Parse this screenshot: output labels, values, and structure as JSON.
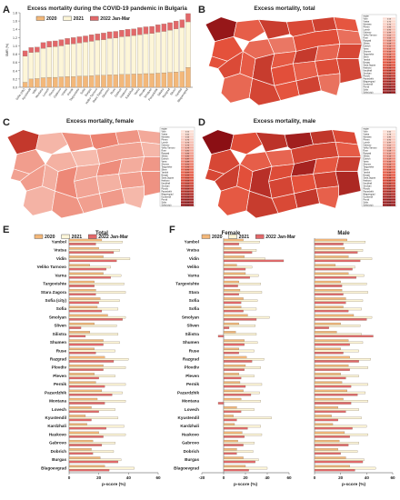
{
  "panels": {
    "A": {
      "letter": "A",
      "title": "Excess mortality during the COVID-19 pandemic in Bulgaria"
    },
    "B": {
      "letter": "B",
      "title": "Excess mortality, total"
    },
    "C": {
      "letter": "C",
      "title": "Excess mortality, female"
    },
    "D": {
      "letter": "D",
      "title": "Excess mortality, male"
    },
    "E": {
      "letter": "E",
      "title": "Total"
    },
    "F": {
      "letter": "F",
      "title_female": "Female",
      "title_male": "Male"
    }
  },
  "colors": {
    "s2020": "#f3b87a",
    "s2021": "#fdf6d8",
    "s2022": "#e2686a",
    "map_dark": "#8b0f14",
    "map_mid": "#e4513b",
    "map_light": "#f7c1a4",
    "border": "#6b6b6b"
  },
  "chart_data": [
    {
      "panel": "A",
      "type": "bar",
      "stacked": true,
      "title": "Excess mortality during the COVID-19 pandemic in Bulgaria",
      "ylabel": "SMR (%)",
      "ylim": [
        0,
        1.8
      ],
      "yticks": [
        "0.0",
        "0.2",
        "0.4",
        "0.6",
        "0.8",
        "1.0",
        "1.2",
        "1.4",
        "1.6",
        "1.8"
      ],
      "legend": [
        "2020",
        "2021",
        "2022 Jan-Mar"
      ],
      "categories": [
        "Sofia (city)",
        "Kyustendil",
        "Vidin",
        "Montana",
        "Lovech",
        "Pleven",
        "Gabrovo",
        "Vratsa",
        "Pernik",
        "Targovishte",
        "Sofia",
        "Burgas",
        "Veliko Tarnovo",
        "Stara Zagora",
        "Shumen",
        "Ruse",
        "Dobrich",
        "Haskovo",
        "Kardzhali",
        "Varna",
        "Plovdiv",
        "Smolyan",
        "Pazardzhik",
        "Silistra",
        "Razgrad",
        "Sliven",
        "Yambol",
        "Blagoevgrad"
      ],
      "series": [
        {
          "name": "2020",
          "values": [
            0.12,
            0.2,
            0.21,
            0.23,
            0.24,
            0.24,
            0.25,
            0.26,
            0.26,
            0.27,
            0.27,
            0.28,
            0.29,
            0.29,
            0.3,
            0.3,
            0.31,
            0.31,
            0.32,
            0.32,
            0.33,
            0.33,
            0.34,
            0.35,
            0.36,
            0.37,
            0.38,
            0.48
          ]
        },
        {
          "name": "2021",
          "values": [
            0.63,
            0.64,
            0.64,
            0.71,
            0.73,
            0.74,
            0.75,
            0.78,
            0.79,
            0.8,
            0.82,
            0.83,
            0.85,
            0.86,
            0.88,
            0.89,
            0.91,
            0.92,
            0.93,
            0.95,
            0.96,
            0.97,
            0.99,
            1.0,
            1.02,
            1.04,
            1.06,
            1.1
          ]
        },
        {
          "name": "2022 Jan-Mar",
          "values": [
            0.13,
            0.12,
            0.12,
            0.14,
            0.14,
            0.14,
            0.15,
            0.14,
            0.15,
            0.15,
            0.15,
            0.16,
            0.15,
            0.16,
            0.16,
            0.16,
            0.16,
            0.17,
            0.16,
            0.17,
            0.17,
            0.17,
            0.18,
            0.18,
            0.18,
            0.19,
            0.19,
            0.2
          ]
        }
      ]
    },
    {
      "panel": "E",
      "type": "bar",
      "orientation": "horizontal",
      "title": "Total",
      "xlabel": "p-score  (%)",
      "xlim": [
        0,
        60
      ],
      "xticks": [
        "0",
        "20",
        "40",
        "60"
      ],
      "legend": [
        "2020",
        "2021",
        "2022 Jan-Mar"
      ],
      "categories": [
        "Yambol",
        "Vratsa",
        "Vidin",
        "Veliko Tarnovo",
        "Varna",
        "Targovishte",
        "Stara Zagora",
        "Sofia (city)",
        "Sofia",
        "Smolyan",
        "Sliven",
        "Silistra",
        "Shumen",
        "Ruse",
        "Razgrad",
        "Plovdiv",
        "Pleven",
        "Pernik",
        "Pazardzhik",
        "Montana",
        "Lovech",
        "Kyustendil",
        "Kardzhali",
        "Haskovo",
        "Gabrovo",
        "Dobrich",
        "Burgas",
        "Blagoevgrad"
      ],
      "series": [
        {
          "name": "2020",
          "values": [
            22,
            20,
            23,
            14,
            23,
            17,
            18,
            21,
            19,
            26,
            17,
            14,
            23,
            17,
            24,
            23,
            17,
            18,
            22,
            19,
            15,
            11,
            12,
            20,
            16,
            15,
            21,
            24
          ]
        },
        {
          "name": "2021",
          "values": [
            36,
            34,
            41,
            28,
            35,
            37,
            38,
            34,
            33,
            38,
            32,
            33,
            34,
            31,
            40,
            38,
            31,
            38,
            36,
            38,
            31,
            33,
            37,
            38,
            31,
            30,
            35,
            44
          ]
        },
        {
          "name": "2022 Jan-Mar",
          "values": [
            18,
            30,
            32,
            25,
            28,
            17,
            18,
            20,
            22,
            36,
            8,
            11,
            23,
            18,
            30,
            23,
            20,
            24,
            29,
            24,
            20,
            15,
            25,
            23,
            22,
            16,
            33,
            27
          ]
        }
      ]
    },
    {
      "panel": "F-female",
      "type": "bar",
      "orientation": "horizontal",
      "title": "Female",
      "xlabel": "p-score  (%)",
      "xlim": [
        -20,
        60
      ],
      "xticks": [
        "-20",
        "0",
        "20",
        "40",
        "60"
      ],
      "categories": [
        "Yambol",
        "Vratsa",
        "Vidin",
        "Veliko",
        "Varna",
        "Targovishte",
        "Stara",
        "Sofia",
        "Sofia",
        "Smolyan",
        "Sliven",
        "Silistra",
        "Shumen",
        "Ruse",
        "Razgrad",
        "Plovdiv",
        "Pleven",
        "Pernik",
        "Pazardzhik",
        "Montana",
        "Lovech",
        "Kyustendil",
        "Kardzhali",
        "Haskovo",
        "Gabrovo",
        "Dobrich",
        "Burgas",
        "Blagoevgrad"
      ],
      "series": [
        {
          "name": "2020",
          "values": [
            18,
            16,
            19,
            12,
            20,
            14,
            15,
            18,
            16,
            22,
            14,
            11,
            19,
            14,
            21,
            20,
            14,
            15,
            18,
            16,
            12,
            9,
            10,
            17,
            13,
            12,
            18,
            20
          ]
        },
        {
          "name": "2021",
          "values": [
            33,
            30,
            38,
            26,
            32,
            34,
            35,
            31,
            30,
            42,
            29,
            30,
            31,
            28,
            37,
            34,
            28,
            35,
            33,
            34,
            28,
            44,
            34,
            35,
            28,
            27,
            32,
            40
          ]
        },
        {
          "name": "2022 Jan-Mar",
          "values": [
            14,
            26,
            55,
            20,
            24,
            13,
            14,
            16,
            18,
            30,
            5,
            -5,
            19,
            14,
            26,
            19,
            16,
            20,
            25,
            -5,
            16,
            12,
            22,
            19,
            18,
            12,
            29,
            23
          ]
        }
      ]
    },
    {
      "panel": "F-male",
      "type": "bar",
      "orientation": "horizontal",
      "title": "Male",
      "xlabel": "p-score  (%)",
      "xlim": [
        0,
        60
      ],
      "xticks": [
        "0",
        "20",
        "40",
        "60"
      ],
      "categories": [
        "Yambol",
        "Vratsa",
        "Vidin",
        "Veliko",
        "Varna",
        "Targovishte",
        "Stara",
        "Sofia",
        "Sofia",
        "Smolyan",
        "Sliven",
        "Silistra",
        "Shumen",
        "Ruse",
        "Razgrad",
        "Plovdiv",
        "Pleven",
        "Pernik",
        "Pazardzhik",
        "Montana",
        "Lovech",
        "Kyustendil",
        "Kardzhali",
        "Haskovo",
        "Gabrovo",
        "Dobrich",
        "Burgas",
        "Blagoevgrad"
      ],
      "series": [
        {
          "name": "2020",
          "values": [
            25,
            23,
            26,
            16,
            26,
            20,
            21,
            24,
            22,
            30,
            20,
            17,
            26,
            20,
            27,
            26,
            20,
            21,
            25,
            22,
            18,
            13,
            14,
            23,
            19,
            18,
            24,
            27
          ]
        },
        {
          "name": "2021",
          "values": [
            39,
            37,
            44,
            31,
            38,
            40,
            41,
            37,
            36,
            44,
            35,
            36,
            37,
            34,
            43,
            41,
            34,
            41,
            39,
            41,
            34,
            36,
            40,
            41,
            34,
            33,
            38,
            47
          ]
        },
        {
          "name": "2022 Jan-Mar",
          "values": [
            22,
            33,
            35,
            29,
            32,
            21,
            22,
            24,
            26,
            40,
            11,
            45,
            27,
            22,
            34,
            27,
            24,
            28,
            33,
            28,
            24,
            18,
            29,
            27,
            26,
            20,
            37,
            31
          ]
        }
      ]
    }
  ],
  "maps": {
    "B": {
      "title": "Excess mortality, total",
      "region_levels": [
        0.95,
        0.55,
        0.6,
        0.72,
        0.5,
        0.65,
        0.45,
        0.7,
        0.58,
        0.62,
        0.48,
        0.66,
        0.52,
        0.74,
        0.57,
        0.63,
        0.68,
        0.54,
        0.61,
        0.69,
        0.47,
        0.59,
        0.73,
        0.56,
        0.64,
        0.51,
        0.67,
        0.6
      ],
      "legend_values": [
        "0.56",
        "0.72",
        "0.74",
        "0.86",
        "0.95",
        "0.99",
        "1.02",
        "1.04",
        "1.06",
        "1.08",
        "1.10",
        "1.12",
        "1.14",
        "1.16",
        "1.18",
        "1.20",
        "1.22",
        "1.24",
        "1.26",
        "1.28",
        "1.30",
        "1.32",
        "1.34",
        "1.36",
        "1.38",
        "1.40",
        "1.43",
        "1.48"
      ]
    },
    "C": {
      "title": "Excess mortality, female",
      "region_levels": [
        0.75,
        0.2,
        0.3,
        0.35,
        0.22,
        0.4,
        0.18,
        0.33,
        0.25,
        0.28,
        0.2,
        0.32,
        0.24,
        0.36,
        0.26,
        0.3,
        0.34,
        0.22,
        0.27,
        0.31,
        0.19,
        0.29,
        0.38,
        0.23,
        0.3,
        0.21,
        0.33,
        0.28
      ],
      "legend_values": [
        "0.50",
        "0.62",
        "0.66",
        "0.70",
        "0.73",
        "0.76",
        "0.79",
        "0.81",
        "0.83",
        "0.85",
        "0.87",
        "0.89",
        "0.91",
        "0.93",
        "0.95",
        "0.97",
        "0.99",
        "1.01",
        "1.03",
        "1.05",
        "1.07",
        "1.09",
        "1.11",
        "1.13",
        "1.15",
        "1.17",
        "1.19",
        "1.21"
      ]
    },
    "D": {
      "title": "Excess mortality, male",
      "region_levels": [
        1.0,
        0.62,
        0.66,
        0.78,
        0.55,
        0.9,
        0.52,
        0.76,
        0.64,
        0.68,
        0.56,
        0.72,
        0.58,
        0.88,
        0.63,
        0.7,
        0.85,
        0.6,
        0.67,
        0.75,
        0.54,
        0.65,
        0.8,
        0.61,
        0.71,
        0.57,
        0.73,
        0.66
      ],
      "legend_values": [
        "0.62",
        "0.78",
        "0.85",
        "0.92",
        "0.97",
        "1.01",
        "1.05",
        "1.08",
        "1.11",
        "1.14",
        "1.17",
        "1.20",
        "1.23",
        "1.26",
        "1.29",
        "1.32",
        "1.35",
        "1.38",
        "1.41",
        "1.44",
        "1.47",
        "1.50",
        "1.53",
        "1.56",
        "1.59",
        "1.62",
        "1.65",
        "1.70"
      ]
    },
    "legend_regions": [
      "region",
      "Vidin",
      "Vratsa",
      "Montana",
      "Pleven",
      "Lovech",
      "Gabrovo",
      "Veliko Tarnovo",
      "Ruse",
      "Razgrad",
      "Silistra",
      "Dobrich",
      "Varna",
      "Shumen",
      "Targovishte",
      "Sliven",
      "Yambol",
      "Burgas",
      "Stara Zagora",
      "Haskovo",
      "Kardzhali",
      "Smolyan",
      "Plovdiv",
      "Pazardzhik",
      "Blagoevgrad",
      "Kyustendil",
      "Pernik",
      "Sofia",
      "Sofia (city)"
    ]
  }
}
